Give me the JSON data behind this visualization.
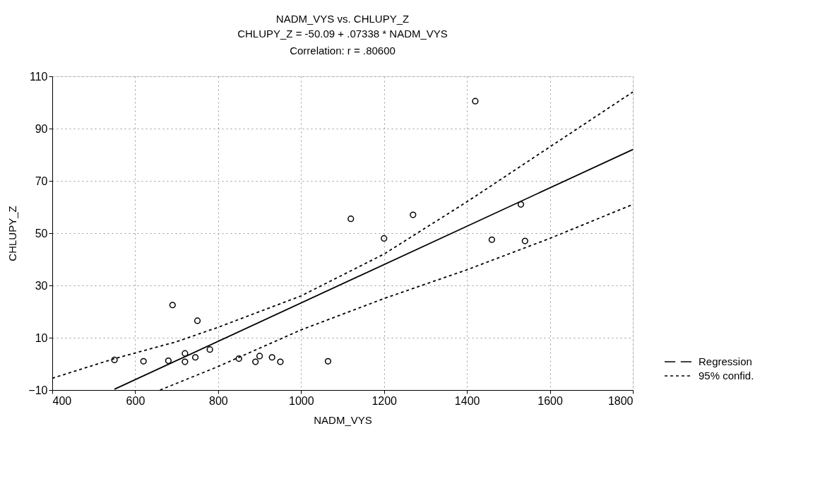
{
  "chart_data": {
    "type": "scatter",
    "title": "NADM_VYS vs. CHLUPY_Z",
    "subtitle": [
      "CHLUPY_Z = -50.09 + .07338 * NADM_VYS",
      "Correlation: r = .80600"
    ],
    "xlabel": "NADM_VYS",
    "ylabel": "CHLUPY_Z",
    "xlim": [
      400,
      1800
    ],
    "ylim": [
      -10,
      110
    ],
    "xticks": [
      400,
      600,
      800,
      1000,
      1200,
      1400,
      1600,
      1800
    ],
    "yticks": [
      -10,
      10,
      30,
      50,
      70,
      90,
      110
    ],
    "grid": true,
    "legend": "right",
    "series": [
      {
        "color": "#000000",
        "marker": "circle",
        "x": [
          550,
          620,
          680,
          690,
          720,
          720,
          745,
          750,
          780,
          850,
          890,
          900,
          930,
          950,
          1065,
          1120,
          1200,
          1270,
          1420,
          1460,
          1530,
          1540
        ],
        "values": [
          1.5,
          1,
          1.2,
          22.5,
          4,
          0.8,
          2.5,
          16.5,
          5.5,
          2,
          0.8,
          3,
          2.5,
          0.8,
          1,
          55.5,
          48,
          57,
          100.5,
          47.5,
          61,
          47
        ]
      },
      {
        "type": "line",
        "name": "Regression",
        "color": "#000000",
        "line_style": "solid",
        "marker": "none",
        "x": [
          550,
          1800
        ],
        "values": [
          -9.7,
          82
        ]
      },
      {
        "type": "line",
        "name": "95% confid.",
        "color": "#000000",
        "line_style": "dashed",
        "marker": "none",
        "x": [
          400,
          550,
          700,
          800,
          1000,
          1200,
          1400,
          1600,
          1800
        ],
        "values": [
          -5.5,
          2,
          8.5,
          14,
          26,
          42,
          62,
          83,
          104
        ]
      },
      {
        "type": "line",
        "color": "#000000",
        "line_style": "dashed",
        "marker": "none",
        "x": [
          660,
          800,
          1000,
          1200,
          1400,
          1600,
          1800
        ],
        "values": [
          -10,
          -1,
          13,
          25,
          36,
          48,
          61
        ]
      }
    ]
  }
}
